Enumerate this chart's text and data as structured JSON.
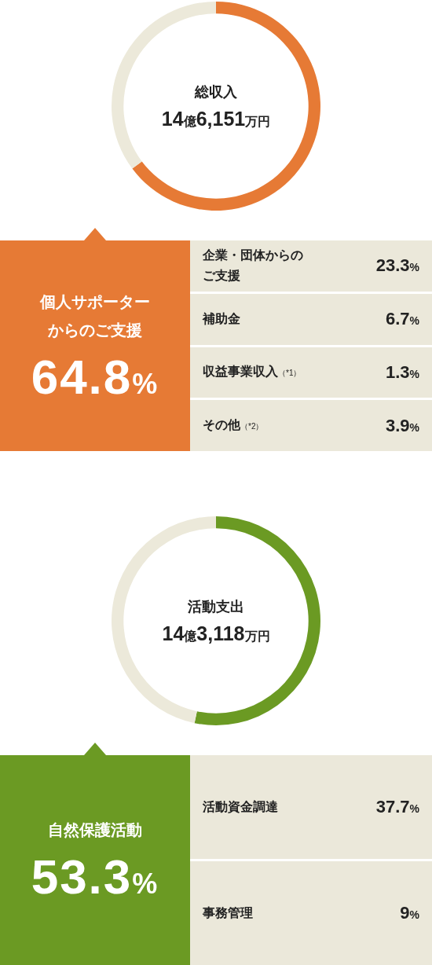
{
  "chart_data": [
    {
      "type": "donut",
      "title": "総収入",
      "subtitle": "14億6,151万円",
      "categories": [
        "個人サポーターからのご支援",
        null
      ],
      "values": [
        64.8,
        35.2
      ],
      "colors": [
        "#e67a35",
        "#ece9da"
      ],
      "value_labels": [
        "64.8%",
        null
      ]
    },
    {
      "type": "other",
      "categories": [
        "企業・団体からのご支援",
        "補助金",
        "収益事業収入（*1）",
        "その他（*2）"
      ],
      "values": [
        23.3,
        6.7,
        1.3,
        3.9
      ],
      "value_labels": [
        "23.3%",
        "6.7%",
        "1.3%",
        "3.9%"
      ]
    },
    {
      "type": "donut",
      "title": "活動支出",
      "subtitle": "14億3,118万円",
      "categories": [
        "自然保護活動",
        null
      ],
      "values": [
        53.3,
        46.7
      ],
      "colors": [
        "#6b9a23",
        "#ece9da"
      ],
      "value_labels": [
        "53.3%",
        null
      ]
    },
    {
      "type": "other",
      "categories": [
        "活動資金調達",
        "事務管理"
      ],
      "values": [
        37.7,
        9
      ],
      "value_labels": [
        "37.7%",
        "9%"
      ]
    }
  ]
}
